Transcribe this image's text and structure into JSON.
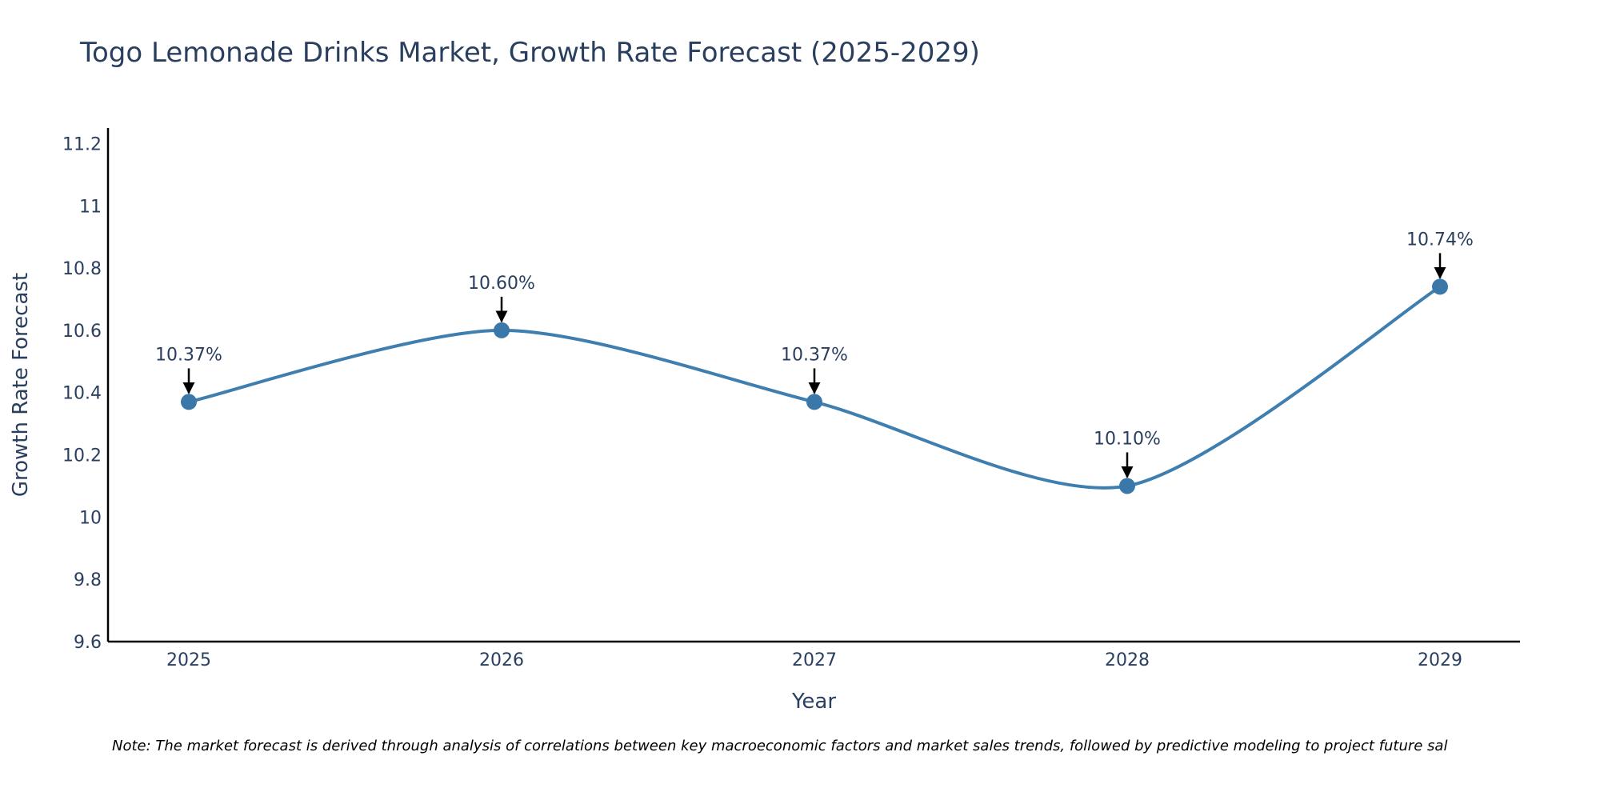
{
  "chart_data": {
    "type": "line",
    "title": "Togo Lemonade Drinks Market, Growth Rate Forecast (2025-2029)",
    "xlabel": "Year",
    "ylabel": "Growth Rate Forecast",
    "categories": [
      "2025",
      "2026",
      "2027",
      "2028",
      "2029"
    ],
    "series": [
      {
        "name": "Growth Rate Forecast",
        "values": [
          10.37,
          10.6,
          10.37,
          10.1,
          10.74
        ],
        "labels": [
          "10.37%",
          "10.60%",
          "10.37%",
          "10.10%",
          "10.74%"
        ]
      }
    ],
    "ylim": [
      9.6,
      11.25
    ],
    "yticks": [
      9.6,
      9.8,
      10,
      10.2,
      10.4,
      10.6,
      10.8,
      11,
      11.2
    ],
    "ytick_labels": [
      "9.6",
      "9.8",
      "10",
      "10.2",
      "10.4",
      "10.6",
      "10.8",
      "11",
      "11.2"
    ],
    "grid": false,
    "line_color": "#3f7fb0",
    "marker_color": "#3a78aa",
    "arrow_color": "#000000",
    "note": "Note: The market forecast is derived through analysis of correlations between key macroeconomic factors and market sales trends, followed by predictive modeling to project future sal"
  }
}
